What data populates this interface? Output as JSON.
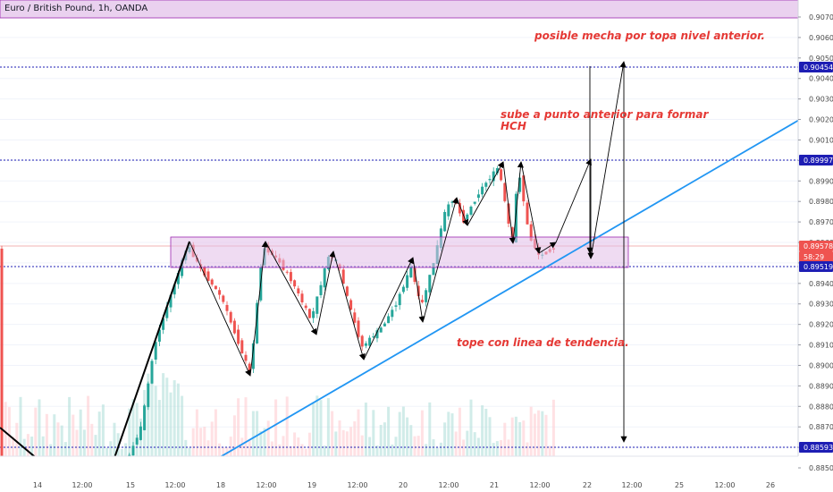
{
  "header": {
    "title": "Euro / British Pound, 1h, OANDA"
  },
  "annotations": {
    "top": "posible mecha por topa nivel anterior.",
    "middle_line1": "sube a punto anterior para formar",
    "middle_line2": "HCH",
    "bottom": "tope con linea de tendencia."
  },
  "price_axis": {
    "ticks": [
      "0.90700",
      "0.90600",
      "0.90500",
      "0.90400",
      "0.90300",
      "0.90200",
      "0.90100",
      "0.90000",
      "0.89900",
      "0.89800",
      "0.89700",
      "0.89600",
      "0.89500",
      "0.89400",
      "0.89300",
      "0.89200",
      "0.89100",
      "0.89000",
      "0.88900",
      "0.88800",
      "0.88700",
      "0.88600",
      "0.88500"
    ]
  },
  "price_tags": [
    {
      "label": "0.90454",
      "color": "#1e1eb4"
    },
    {
      "label": "0.89997",
      "color": "#1e1eb4"
    },
    {
      "label": "0.89578",
      "color": "#ef5350"
    },
    {
      "label": "58:29",
      "color": "#ef5350"
    },
    {
      "label": "0.89519",
      "color": "#1e1eb4"
    },
    {
      "label": "0.88593",
      "color": "#1e1eb4"
    }
  ],
  "time_axis": {
    "ticks": [
      "14",
      "12:00",
      "15",
      "12:00",
      "18",
      "12:00",
      "19",
      "12:00",
      "20",
      "12:00",
      "21",
      "12:00",
      "22",
      "12:00",
      "25",
      "12:00",
      "26"
    ]
  },
  "colors": {
    "up": "#26a69a",
    "down": "#ef5350",
    "level": "#1e1eb4",
    "zone_fill": "#e1bee7",
    "zone_stroke": "#9c27b0",
    "trendline": "#2196f3",
    "annotation": "#e53935"
  },
  "icons": [
    "event-calendar-icon",
    "economic-event-icon"
  ]
}
